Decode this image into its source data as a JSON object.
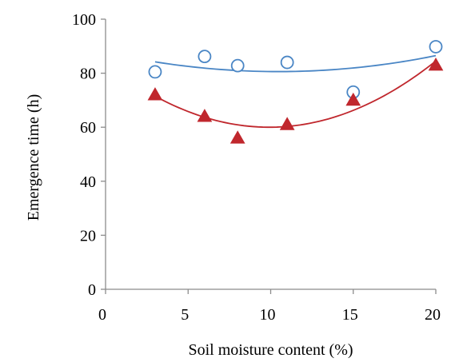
{
  "chart_data": {
    "type": "scatter",
    "title": "",
    "xlabel": "Soil moisture content (%)",
    "ylabel": "Emergence time (h)",
    "xlim": [
      0,
      20
    ],
    "ylim": [
      0,
      100
    ],
    "x_ticks": [
      0,
      5,
      10,
      15,
      20
    ],
    "y_ticks": [
      0,
      20,
      40,
      60,
      80,
      100
    ],
    "grid": false,
    "legend": "none",
    "series": [
      {
        "marker": "open-circle",
        "color": "#4a86c5",
        "trendline": "quadratic",
        "points": [
          {
            "x": 3,
            "y": 80.5
          },
          {
            "x": 6,
            "y": 86.2
          },
          {
            "x": 8,
            "y": 82.8
          },
          {
            "x": 11,
            "y": 84.0
          },
          {
            "x": 15,
            "y": 73.0
          },
          {
            "x": 20,
            "y": 89.8
          }
        ],
        "trend_points": [
          {
            "x": 3,
            "y": 84.2
          },
          {
            "x": 10.7,
            "y": 80.6
          },
          {
            "x": 20,
            "y": 86.5
          }
        ]
      },
      {
        "marker": "filled-triangle",
        "color": "#c0272d",
        "trendline": "quadratic",
        "points": [
          {
            "x": 3,
            "y": 72.0
          },
          {
            "x": 6,
            "y": 64.0
          },
          {
            "x": 8,
            "y": 56.0
          },
          {
            "x": 11,
            "y": 61.0
          },
          {
            "x": 15,
            "y": 70.0
          },
          {
            "x": 20,
            "y": 83.0
          }
        ],
        "trend_points": [
          {
            "x": 3,
            "y": 71.5
          },
          {
            "x": 10,
            "y": 60.0
          },
          {
            "x": 20,
            "y": 84.5
          }
        ]
      }
    ]
  }
}
